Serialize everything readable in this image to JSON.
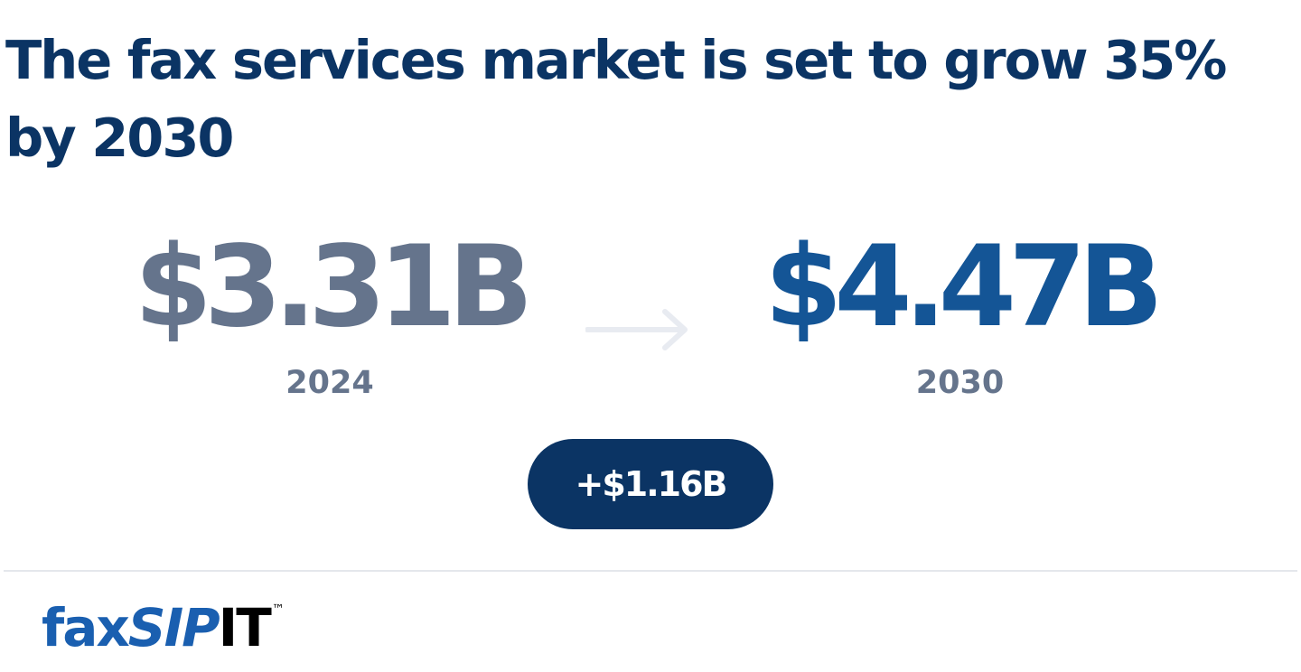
{
  "headline": "The fax services market is set to grow 35% by 2030",
  "stats": {
    "start": {
      "value": "$3.31B",
      "year": "2024",
      "color": "#65748c"
    },
    "end": {
      "value": "$4.47B",
      "year": "2030",
      "color": "#145596"
    }
  },
  "arrow_icon": "right-arrow-icon",
  "growth_badge": "+$1.16B",
  "logo": {
    "fax": "fax",
    "sip": "SIP",
    "it": "IT",
    "tm": "™"
  },
  "colors": {
    "navy": "#0b3464",
    "muted": "#65748c",
    "blue": "#145596",
    "arrow": "#e8ebf1"
  }
}
